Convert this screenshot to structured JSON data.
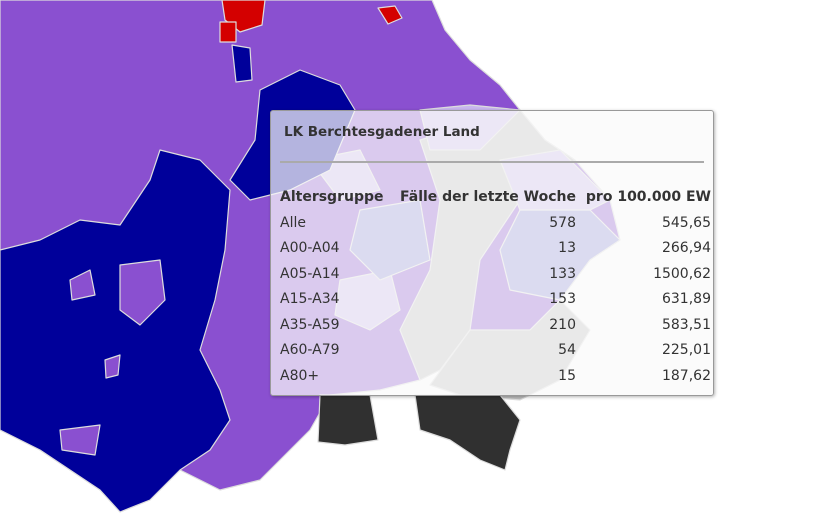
{
  "map": {
    "colors": {
      "purple": "#8a50d0",
      "dark_blue": "#00009a",
      "red": "#d40000",
      "grey": "#bdbdbd",
      "black": "#303030",
      "lavender": "#c9b6ee",
      "slate": "#8e8ed8"
    }
  },
  "tooltip": {
    "title": "LK Berchtesgadener Land",
    "headers": [
      "Altersgruppe",
      "Fälle der letzte Woche",
      "pro 100.000 EW"
    ],
    "rows": [
      [
        "Alle",
        "578",
        "545,65"
      ],
      [
        "A00-A04",
        "13",
        "266,94"
      ],
      [
        "A05-A14",
        "133",
        "1500,62"
      ],
      [
        "A15-A34",
        "153",
        "631,89"
      ],
      [
        "A35-A59",
        "210",
        "583,51"
      ],
      [
        "A60-A79",
        "54",
        "225,01"
      ],
      [
        "A80+",
        "15",
        "187,62"
      ]
    ]
  }
}
